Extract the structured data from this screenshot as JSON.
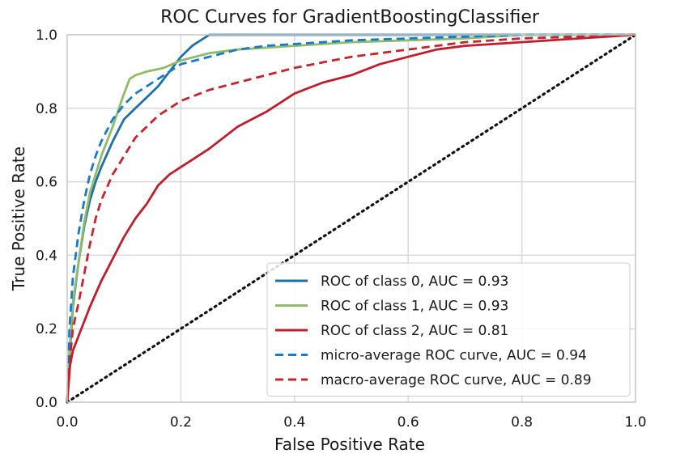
{
  "chart_data": {
    "type": "line",
    "title": "ROC Curves for GradientBoostingClassifier",
    "xlabel": "False Positive Rate",
    "ylabel": "True Positive Rate",
    "xlim": [
      0.0,
      1.0
    ],
    "ylim": [
      0.0,
      1.0
    ],
    "xticks": [
      "0.0",
      "0.2",
      "0.4",
      "0.6",
      "0.8",
      "1.0"
    ],
    "yticks": [
      "0.0",
      "0.2",
      "0.4",
      "0.6",
      "0.8",
      "1.0"
    ],
    "grid": true,
    "legend_position": "lower-right",
    "series": [
      {
        "name": "ROC of class 0, AUC = 0.93",
        "color": "#1f6fa8",
        "style": "solid",
        "x": [
          0,
          0.004,
          0.01,
          0.02,
          0.03,
          0.04,
          0.05,
          0.06,
          0.08,
          0.1,
          0.12,
          0.14,
          0.16,
          0.18,
          0.2,
          0.22,
          0.24,
          0.25,
          0.3,
          0.4,
          0.6,
          0.8,
          1.0
        ],
        "y": [
          0,
          0.12,
          0.26,
          0.38,
          0.48,
          0.55,
          0.6,
          0.64,
          0.71,
          0.77,
          0.8,
          0.83,
          0.86,
          0.9,
          0.94,
          0.97,
          0.99,
          1.0,
          1.0,
          1.0,
          1.0,
          1.0,
          1.0
        ]
      },
      {
        "name": "ROC of class 1, AUC = 0.93",
        "color": "#8fbb6a",
        "style": "solid",
        "x": [
          0,
          0.004,
          0.01,
          0.02,
          0.03,
          0.04,
          0.05,
          0.06,
          0.08,
          0.1,
          0.11,
          0.12,
          0.14,
          0.17,
          0.2,
          0.25,
          0.3,
          0.4,
          0.5,
          0.6,
          0.7,
          0.8,
          1.0
        ],
        "y": [
          0,
          0.14,
          0.27,
          0.38,
          0.49,
          0.57,
          0.62,
          0.67,
          0.75,
          0.84,
          0.88,
          0.89,
          0.9,
          0.91,
          0.93,
          0.95,
          0.96,
          0.97,
          0.98,
          0.985,
          0.99,
          1.0,
          1.0
        ]
      },
      {
        "name": "ROC of class 2, AUC = 0.81",
        "color": "#bf1e2d",
        "style": "solid",
        "x": [
          0,
          0.005,
          0.01,
          0.02,
          0.04,
          0.06,
          0.08,
          0.1,
          0.12,
          0.14,
          0.16,
          0.18,
          0.2,
          0.22,
          0.25,
          0.3,
          0.35,
          0.4,
          0.45,
          0.5,
          0.55,
          0.6,
          0.65,
          0.7,
          0.75,
          0.8,
          0.9,
          1.0
        ],
        "y": [
          0,
          0.1,
          0.14,
          0.18,
          0.26,
          0.33,
          0.39,
          0.45,
          0.5,
          0.54,
          0.59,
          0.62,
          0.64,
          0.66,
          0.69,
          0.75,
          0.79,
          0.84,
          0.87,
          0.89,
          0.92,
          0.94,
          0.96,
          0.97,
          0.975,
          0.98,
          0.99,
          1.0
        ]
      },
      {
        "name": "micro-average ROC curve, AUC = 0.94",
        "color": "#1a7ac9",
        "style": "dashed",
        "x": [
          0,
          0.004,
          0.01,
          0.02,
          0.03,
          0.04,
          0.05,
          0.06,
          0.07,
          0.08,
          0.1,
          0.12,
          0.14,
          0.16,
          0.18,
          0.2,
          0.25,
          0.3,
          0.35,
          0.4,
          0.5,
          0.6,
          0.7,
          0.8,
          1.0
        ],
        "y": [
          0,
          0.2,
          0.34,
          0.46,
          0.55,
          0.62,
          0.67,
          0.71,
          0.74,
          0.77,
          0.81,
          0.84,
          0.86,
          0.88,
          0.9,
          0.92,
          0.94,
          0.96,
          0.97,
          0.975,
          0.985,
          0.99,
          0.995,
          1.0,
          1.0
        ]
      },
      {
        "name": "macro-average ROC curve, AUC = 0.89",
        "color": "#c1272d",
        "style": "dashed",
        "x": [
          0,
          0.005,
          0.01,
          0.02,
          0.03,
          0.04,
          0.05,
          0.06,
          0.08,
          0.1,
          0.12,
          0.14,
          0.16,
          0.18,
          0.2,
          0.25,
          0.3,
          0.35,
          0.4,
          0.5,
          0.6,
          0.7,
          0.8,
          1.0
        ],
        "y": [
          0,
          0.12,
          0.2,
          0.27,
          0.35,
          0.43,
          0.5,
          0.55,
          0.62,
          0.67,
          0.72,
          0.75,
          0.78,
          0.8,
          0.82,
          0.85,
          0.87,
          0.89,
          0.91,
          0.94,
          0.96,
          0.98,
          0.99,
          1.0
        ]
      },
      {
        "name": "",
        "color": "#111111",
        "style": "dotted",
        "x": [
          0,
          1
        ],
        "y": [
          0,
          1
        ]
      }
    ]
  }
}
